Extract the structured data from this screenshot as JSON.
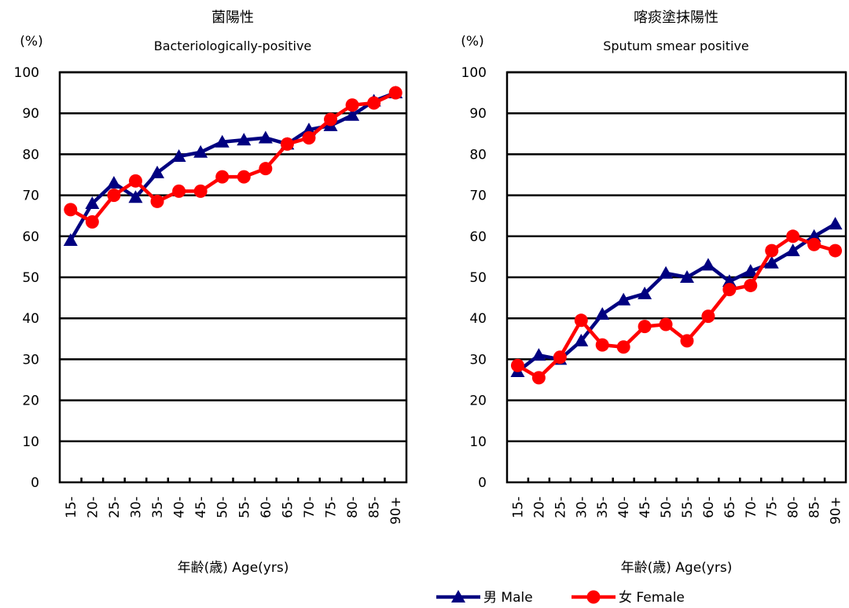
{
  "chart_data": [
    {
      "type": "line",
      "title": "菌陽性",
      "subtitle": "Bacteriologically-positive",
      "ylabel": "(%)",
      "xlabel": "年齢(歳) Age(yrs)",
      "ylim": [
        0,
        100
      ],
      "yticks": [
        0,
        10,
        20,
        30,
        40,
        50,
        60,
        70,
        80,
        90,
        100
      ],
      "grid": true,
      "categories": [
        "15-",
        "20-",
        "25-",
        "30-",
        "35-",
        "40-",
        "45-",
        "50-",
        "55-",
        "60-",
        "65-",
        "70-",
        "75-",
        "80-",
        "85-",
        "90+"
      ],
      "series": [
        {
          "name": "男 Male",
          "color": "#000080",
          "marker": "triangle",
          "values": [
            59,
            68,
            73,
            69.5,
            75.5,
            79.5,
            80.5,
            83,
            83.5,
            84,
            82.5,
            86,
            87,
            89.5,
            93,
            95
          ]
        },
        {
          "name": "女 Female",
          "color": "#ff0000",
          "marker": "circle",
          "values": [
            66.5,
            63.5,
            70,
            73.5,
            68.5,
            71,
            71,
            74.5,
            74.5,
            76.5,
            82.5,
            84,
            88.5,
            92,
            92.5,
            95
          ]
        }
      ]
    },
    {
      "type": "line",
      "title": "喀痰塗抹陽性",
      "subtitle": "Sputum smear positive",
      "ylabel": "(%)",
      "xlabel": "年齢(歳) Age(yrs)",
      "ylim": [
        0,
        100
      ],
      "yticks": [
        0,
        10,
        20,
        30,
        40,
        50,
        60,
        70,
        80,
        90,
        100
      ],
      "grid": true,
      "categories": [
        "15-",
        "20-",
        "25-",
        "30-",
        "35-",
        "40-",
        "45-",
        "50-",
        "55-",
        "60-",
        "65-",
        "70-",
        "75-",
        "80-",
        "85-",
        "90+"
      ],
      "series": [
        {
          "name": "男 Male",
          "color": "#000080",
          "marker": "triangle",
          "values": [
            27,
            31,
            30,
            34.5,
            41,
            44.5,
            46,
            51,
            50,
            53,
            49,
            51.5,
            53.5,
            56.5,
            60,
            63
          ]
        },
        {
          "name": "女 Female",
          "color": "#ff0000",
          "marker": "circle",
          "values": [
            28.5,
            25.5,
            30.5,
            39.5,
            33.5,
            33,
            38,
            38.5,
            34.5,
            40.5,
            47,
            48,
            56.5,
            60,
            58,
            56.5
          ]
        }
      ]
    }
  ],
  "legend": {
    "placement": "bottom-right",
    "items": [
      {
        "label": "男 Male",
        "color": "#000080",
        "marker": "triangle"
      },
      {
        "label": "女 Female",
        "color": "#ff0000",
        "marker": "circle"
      }
    ]
  }
}
